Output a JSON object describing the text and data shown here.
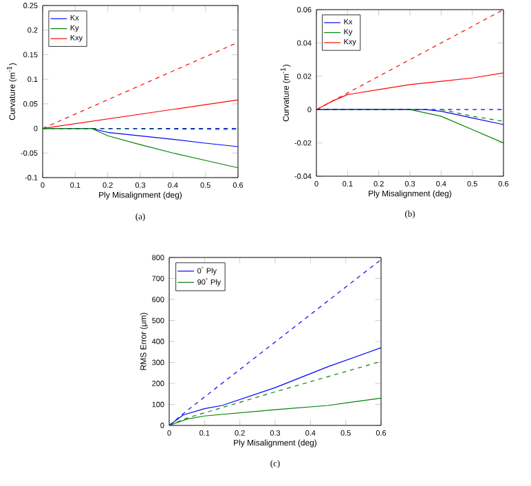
{
  "chart_data": [
    {
      "type": "line",
      "xlabel": "Ply Misalignment (deg)",
      "ylabel": "Curvature (m$^{-1}$)",
      "annotations": [
        "(a)"
      ],
      "legend": "top left",
      "xlim": [
        0,
        0.6
      ],
      "ylim": [
        -0.1,
        0.25
      ],
      "xticks": [
        0,
        0.1,
        0.2,
        0.3,
        0.4,
        0.5,
        0.6
      ],
      "yticks": [
        -0.1,
        -0.05,
        0,
        0.05,
        0.1,
        0.15,
        0.2,
        0.25
      ],
      "series": [
        {
          "name": "Kx",
          "color": "#0000ff",
          "line_style": "solid",
          "x": [
            0,
            0.15,
            0.2,
            0.3,
            0.4,
            0.5,
            0.6
          ],
          "values": [
            0,
            0,
            -0.008,
            -0.015,
            -0.022,
            -0.03,
            -0.037
          ]
        },
        {
          "name": "Ky",
          "color": "#008000",
          "line_style": "solid",
          "x": [
            0,
            0.15,
            0.2,
            0.3,
            0.4,
            0.5,
            0.6
          ],
          "values": [
            0,
            0,
            -0.015,
            -0.033,
            -0.05,
            -0.065,
            -0.08
          ]
        },
        {
          "name": "Kxy",
          "color": "#ff0000",
          "line_style": "solid",
          "x": [
            0,
            0.6
          ],
          "values": [
            0,
            0.058
          ]
        },
        {
          "color": "#ff0000",
          "line_style": "dashed",
          "x": [
            0,
            0.6
          ],
          "values": [
            0,
            0.175
          ]
        },
        {
          "color": "#0000ff",
          "line_style": "dashed",
          "x": [
            0,
            0.6
          ],
          "values": [
            0,
            0
          ]
        },
        {
          "color": "#008000",
          "line_style": "dashed",
          "x": [
            0,
            0.6
          ],
          "values": [
            0,
            -0.002
          ]
        }
      ]
    },
    {
      "type": "line",
      "xlabel": "Ply Misalignment (deg)",
      "ylabel": "Curvature (m$^{-1}$)",
      "annotations": [
        "(b)"
      ],
      "legend": "top left",
      "xlim": [
        0,
        0.6
      ],
      "ylim": [
        -0.04,
        0.06
      ],
      "xticks": [
        0,
        0.1,
        0.2,
        0.3,
        0.4,
        0.5,
        0.6
      ],
      "yticks": [
        -0.04,
        -0.02,
        0,
        0.02,
        0.04,
        0.06
      ],
      "series": [
        {
          "name": "Kx",
          "color": "#0000ff",
          "line_style": "solid",
          "x": [
            0,
            0.35,
            0.4,
            0.5,
            0.6
          ],
          "values": [
            0,
            0,
            -0.001,
            -0.005,
            -0.009
          ]
        },
        {
          "name": "Ky",
          "color": "#008000",
          "line_style": "solid",
          "x": [
            0,
            0.3,
            0.4,
            0.5,
            0.6
          ],
          "values": [
            0,
            0,
            -0.004,
            -0.012,
            -0.02
          ]
        },
        {
          "name": "Kxy",
          "color": "#ff0000",
          "line_style": "solid",
          "x": [
            0,
            0.05,
            0.1,
            0.2,
            0.3,
            0.4,
            0.5,
            0.6
          ],
          "values": [
            0,
            0.005,
            0.009,
            0.012,
            0.015,
            0.017,
            0.019,
            0.022
          ]
        },
        {
          "color": "#ff0000",
          "line_style": "dashed",
          "x": [
            0,
            0.6
          ],
          "values": [
            0,
            0.06
          ]
        },
        {
          "color": "#0000ff",
          "line_style": "dashed",
          "x": [
            0,
            0.6
          ],
          "values": [
            0,
            0
          ]
        },
        {
          "color": "#008000",
          "line_style": "dashed",
          "x": [
            0.4,
            0.5,
            0.6
          ],
          "values": [
            0,
            -0.004,
            -0.007
          ]
        }
      ]
    },
    {
      "type": "line",
      "xlabel": "Ply Misalignment (deg)",
      "ylabel": "RMS Error (μm)",
      "annotations": [
        "(c)"
      ],
      "legend": "top left",
      "xlim": [
        0,
        0.6
      ],
      "ylim": [
        0,
        800
      ],
      "xticks": [
        0,
        0.1,
        0.2,
        0.3,
        0.4,
        0.5,
        0.6
      ],
      "yticks": [
        0,
        100,
        200,
        300,
        400,
        500,
        600,
        700,
        800
      ],
      "series": [
        {
          "name": "0$^{°}$ Ply",
          "color": "#0000ff",
          "line_style": "solid",
          "x": [
            0,
            0.04,
            0.1,
            0.15,
            0.3,
            0.45,
            0.6
          ],
          "values": [
            0,
            50,
            80,
            95,
            180,
            280,
            370
          ]
        },
        {
          "name": "90$^{°}$ Ply",
          "color": "#008000",
          "line_style": "solid",
          "x": [
            0,
            0.05,
            0.1,
            0.3,
            0.45,
            0.6
          ],
          "values": [
            0,
            30,
            45,
            75,
            95,
            130
          ]
        },
        {
          "color": "#0000ff",
          "line_style": "dashed",
          "x": [
            0,
            0.05,
            0.6
          ],
          "values": [
            0,
            70,
            790
          ]
        },
        {
          "color": "#008000",
          "line_style": "dashed",
          "x": [
            0,
            0.05,
            0.1,
            0.3,
            0.6
          ],
          "values": [
            0,
            35,
            60,
            160,
            305
          ]
        }
      ]
    }
  ]
}
